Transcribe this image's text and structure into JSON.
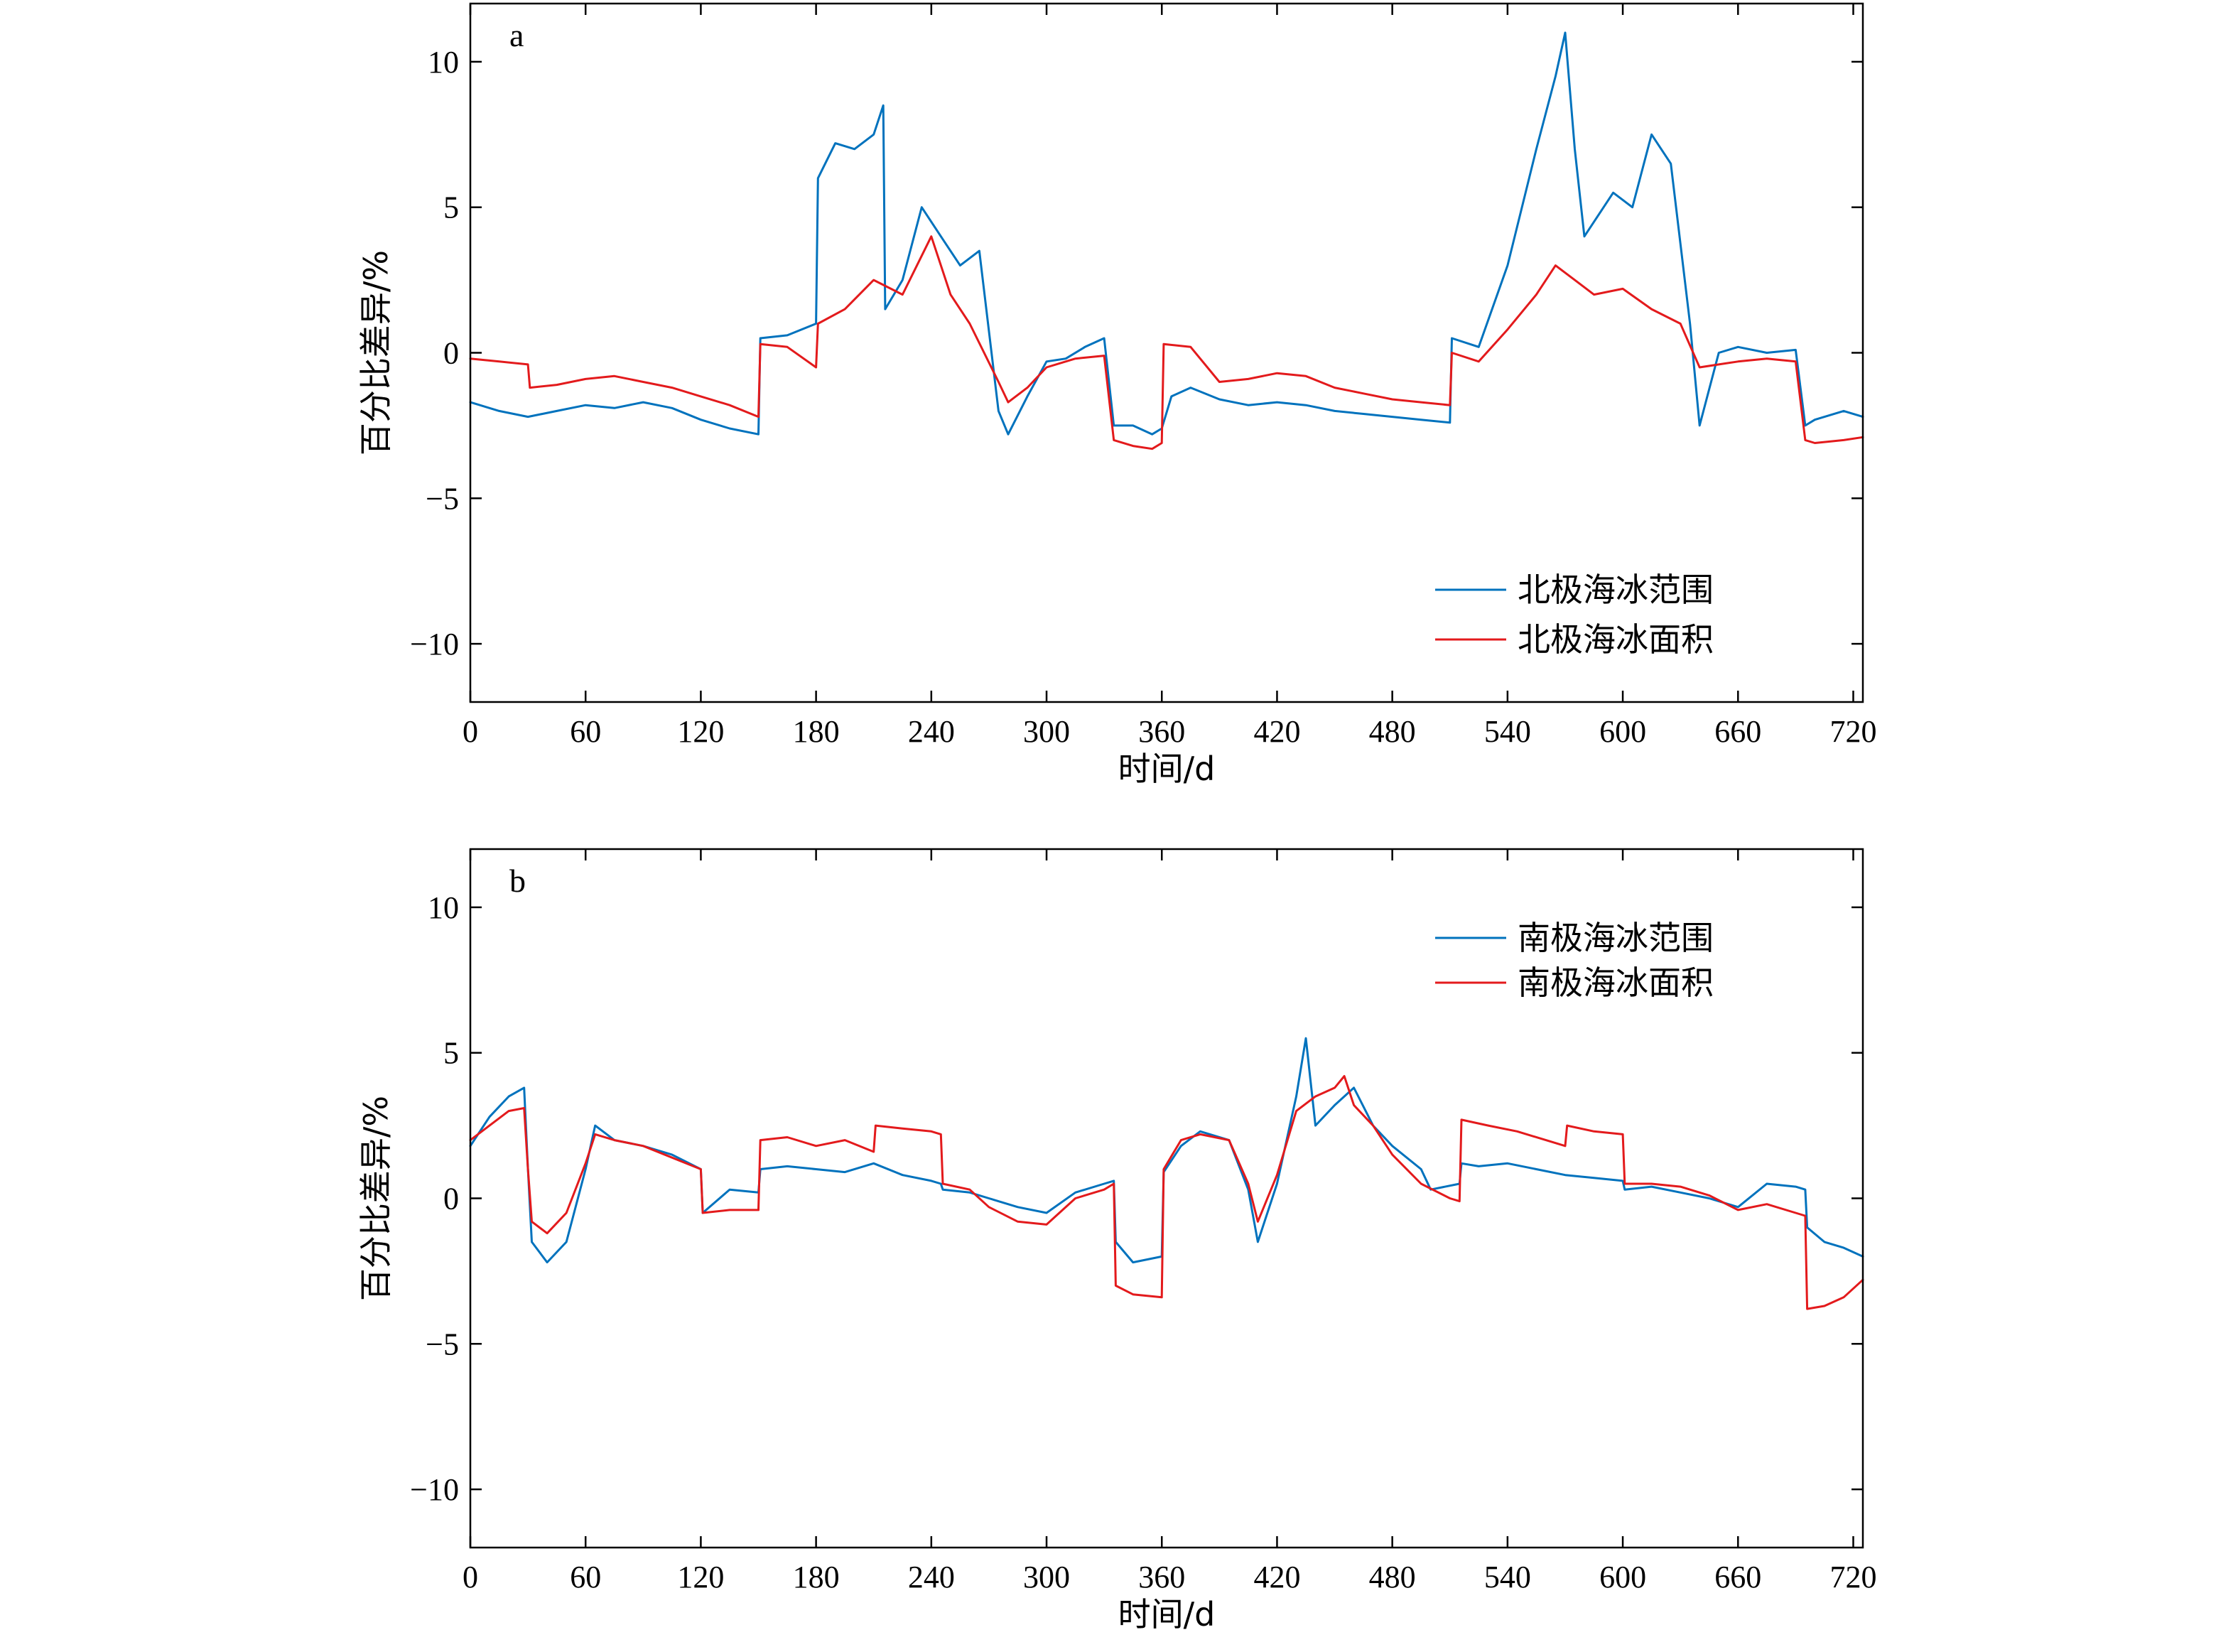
{
  "chart_data": [
    {
      "type": "line",
      "panel_label": "a",
      "xlabel": "时间/d",
      "ylabel": "百分比差异/%",
      "xlim": [
        0,
        725
      ],
      "ylim": [
        -12,
        12
      ],
      "xticks": [
        0,
        60,
        120,
        180,
        240,
        300,
        360,
        420,
        480,
        540,
        600,
        660,
        720
      ],
      "yticks": [
        -10,
        -5,
        0,
        5,
        10
      ],
      "ytick_labels": [
        "−10",
        "−5",
        "0",
        "5",
        "10"
      ],
      "legend_position": "lower-right",
      "grid": false,
      "series": [
        {
          "name": "北极海冰范围",
          "color": "#0072BD",
          "x": [
            0,
            15,
            30,
            45,
            60,
            75,
            90,
            105,
            120,
            135,
            150,
            151,
            165,
            180,
            181,
            190,
            200,
            210,
            215,
            216,
            225,
            235,
            245,
            255,
            265,
            275,
            280,
            290,
            300,
            310,
            320,
            330,
            335,
            345,
            355,
            360,
            365,
            375,
            390,
            405,
            420,
            435,
            450,
            465,
            480,
            495,
            510,
            511,
            525,
            540,
            555,
            565,
            570,
            575,
            580,
            595,
            605,
            615,
            625,
            635,
            640,
            650,
            660,
            675,
            690,
            695,
            700,
            715,
            725
          ],
          "y": [
            -1.7,
            -2.0,
            -2.2,
            -2.0,
            -1.8,
            -1.9,
            -1.7,
            -1.9,
            -2.3,
            -2.6,
            -2.8,
            0.5,
            0.6,
            1.0,
            6.0,
            7.2,
            7.0,
            7.5,
            8.5,
            1.5,
            2.5,
            5.0,
            4.0,
            3.0,
            3.5,
            -2.0,
            -2.8,
            -1.5,
            -0.3,
            -0.2,
            0.2,
            0.5,
            -2.5,
            -2.5,
            -2.8,
            -2.6,
            -1.5,
            -1.2,
            -1.6,
            -1.8,
            -1.7,
            -1.8,
            -2.0,
            -2.1,
            -2.2,
            -2.3,
            -2.4,
            0.5,
            0.2,
            3.0,
            7.0,
            9.5,
            11.0,
            7.0,
            4.0,
            5.5,
            5.0,
            7.5,
            6.5,
            1.0,
            -2.5,
            0.0,
            0.2,
            0.0,
            0.1,
            -2.5,
            -2.3,
            -2.0,
            -2.2
          ]
        },
        {
          "name": "北极海冰面积",
          "color": "#E31A1C",
          "x": [
            0,
            15,
            30,
            31,
            45,
            60,
            75,
            90,
            105,
            120,
            135,
            150,
            151,
            165,
            180,
            181,
            195,
            210,
            225,
            240,
            250,
            260,
            275,
            280,
            290,
            300,
            315,
            330,
            335,
            345,
            355,
            360,
            361,
            375,
            390,
            405,
            420,
            435,
            450,
            465,
            480,
            495,
            510,
            511,
            525,
            540,
            555,
            565,
            575,
            585,
            600,
            615,
            630,
            640,
            650,
            660,
            675,
            690,
            695,
            700,
            715,
            725
          ],
          "y": [
            -0.2,
            -0.3,
            -0.4,
            -1.2,
            -1.1,
            -0.9,
            -0.8,
            -1.0,
            -1.2,
            -1.5,
            -1.8,
            -2.2,
            0.3,
            0.2,
            -0.5,
            1.0,
            1.5,
            2.5,
            2.0,
            4.0,
            2.0,
            1.0,
            -1.0,
            -1.7,
            -1.2,
            -0.5,
            -0.2,
            -0.1,
            -3.0,
            -3.2,
            -3.3,
            -3.1,
            0.3,
            0.2,
            -1.0,
            -0.9,
            -0.7,
            -0.8,
            -1.2,
            -1.4,
            -1.6,
            -1.7,
            -1.8,
            0.0,
            -0.3,
            0.8,
            2.0,
            3.0,
            2.5,
            2.0,
            2.2,
            1.5,
            1.0,
            -0.5,
            -0.4,
            -0.3,
            -0.2,
            -0.3,
            -3.0,
            -3.1,
            -3.0,
            -2.9
          ]
        }
      ]
    },
    {
      "type": "line",
      "panel_label": "b",
      "xlabel": "时间/d",
      "ylabel": "百分比差异/%",
      "xlim": [
        0,
        725
      ],
      "ylim": [
        -12,
        12
      ],
      "xticks": [
        0,
        60,
        120,
        180,
        240,
        300,
        360,
        420,
        480,
        540,
        600,
        660,
        720
      ],
      "yticks": [
        -10,
        -5,
        0,
        5,
        10
      ],
      "ytick_labels": [
        "−10",
        "−5",
        "0",
        "5",
        "10"
      ],
      "legend_position": "upper-right",
      "grid": false,
      "series": [
        {
          "name": "南极海冰范围",
          "color": "#0072BD",
          "x": [
            0,
            10,
            20,
            28,
            30,
            32,
            40,
            50,
            60,
            65,
            75,
            90,
            105,
            120,
            121,
            135,
            150,
            151,
            165,
            180,
            195,
            210,
            225,
            240,
            245,
            246,
            260,
            270,
            285,
            300,
            315,
            330,
            335,
            336,
            345,
            360,
            361,
            370,
            380,
            395,
            405,
            410,
            420,
            430,
            435,
            440,
            450,
            460,
            470,
            480,
            495,
            500,
            515,
            516,
            525,
            540,
            555,
            570,
            585,
            600,
            601,
            615,
            630,
            645,
            660,
            675,
            690,
            695,
            696,
            705,
            715,
            725
          ],
          "y": [
            1.8,
            2.8,
            3.5,
            3.8,
            1.0,
            -1.5,
            -2.2,
            -1.5,
            1.0,
            2.5,
            2.0,
            1.8,
            1.5,
            1.0,
            -0.5,
            0.3,
            0.2,
            1.0,
            1.1,
            1.0,
            0.9,
            1.2,
            0.8,
            0.6,
            0.5,
            0.3,
            0.2,
            0.0,
            -0.3,
            -0.5,
            0.2,
            0.5,
            0.6,
            -1.5,
            -2.2,
            -2.0,
            0.9,
            1.8,
            2.3,
            2.0,
            0.3,
            -1.5,
            0.5,
            3.5,
            5.5,
            2.5,
            3.2,
            3.8,
            2.5,
            1.8,
            1.0,
            0.3,
            0.5,
            1.2,
            1.1,
            1.2,
            1.0,
            0.8,
            0.7,
            0.6,
            0.3,
            0.4,
            0.2,
            0.0,
            -0.3,
            0.5,
            0.4,
            0.3,
            -1.0,
            -1.5,
            -1.7,
            -2.0
          ]
        },
        {
          "name": "南极海冰面积",
          "color": "#E31A1C",
          "x": [
            0,
            10,
            20,
            28,
            30,
            32,
            40,
            50,
            60,
            65,
            75,
            90,
            105,
            120,
            121,
            135,
            150,
            151,
            165,
            180,
            195,
            210,
            211,
            225,
            240,
            245,
            246,
            260,
            270,
            285,
            300,
            315,
            330,
            335,
            336,
            345,
            360,
            361,
            370,
            380,
            395,
            405,
            410,
            420,
            430,
            440,
            450,
            455,
            460,
            470,
            480,
            495,
            510,
            515,
            516,
            530,
            545,
            560,
            570,
            571,
            585,
            600,
            601,
            615,
            630,
            645,
            660,
            675,
            690,
            695,
            696,
            705,
            715,
            725
          ],
          "y": [
            2.0,
            2.5,
            3.0,
            3.1,
            1.0,
            -0.8,
            -1.2,
            -0.5,
            1.2,
            2.2,
            2.0,
            1.8,
            1.4,
            1.0,
            -0.5,
            -0.4,
            -0.4,
            2.0,
            2.1,
            1.8,
            2.0,
            1.6,
            2.5,
            2.4,
            2.3,
            2.2,
            0.5,
            0.3,
            -0.3,
            -0.8,
            -0.9,
            0.0,
            0.3,
            0.5,
            -3.0,
            -3.3,
            -3.4,
            1.0,
            2.0,
            2.2,
            2.0,
            0.5,
            -0.8,
            0.8,
            3.0,
            3.5,
            3.8,
            4.2,
            3.2,
            2.5,
            1.5,
            0.5,
            0.0,
            -0.1,
            2.7,
            2.5,
            2.3,
            2.0,
            1.8,
            2.5,
            2.3,
            2.2,
            0.5,
            0.5,
            0.4,
            0.1,
            -0.4,
            -0.2,
            -0.5,
            -0.6,
            -3.8,
            -3.7,
            -3.4,
            -2.8
          ]
        }
      ]
    }
  ]
}
